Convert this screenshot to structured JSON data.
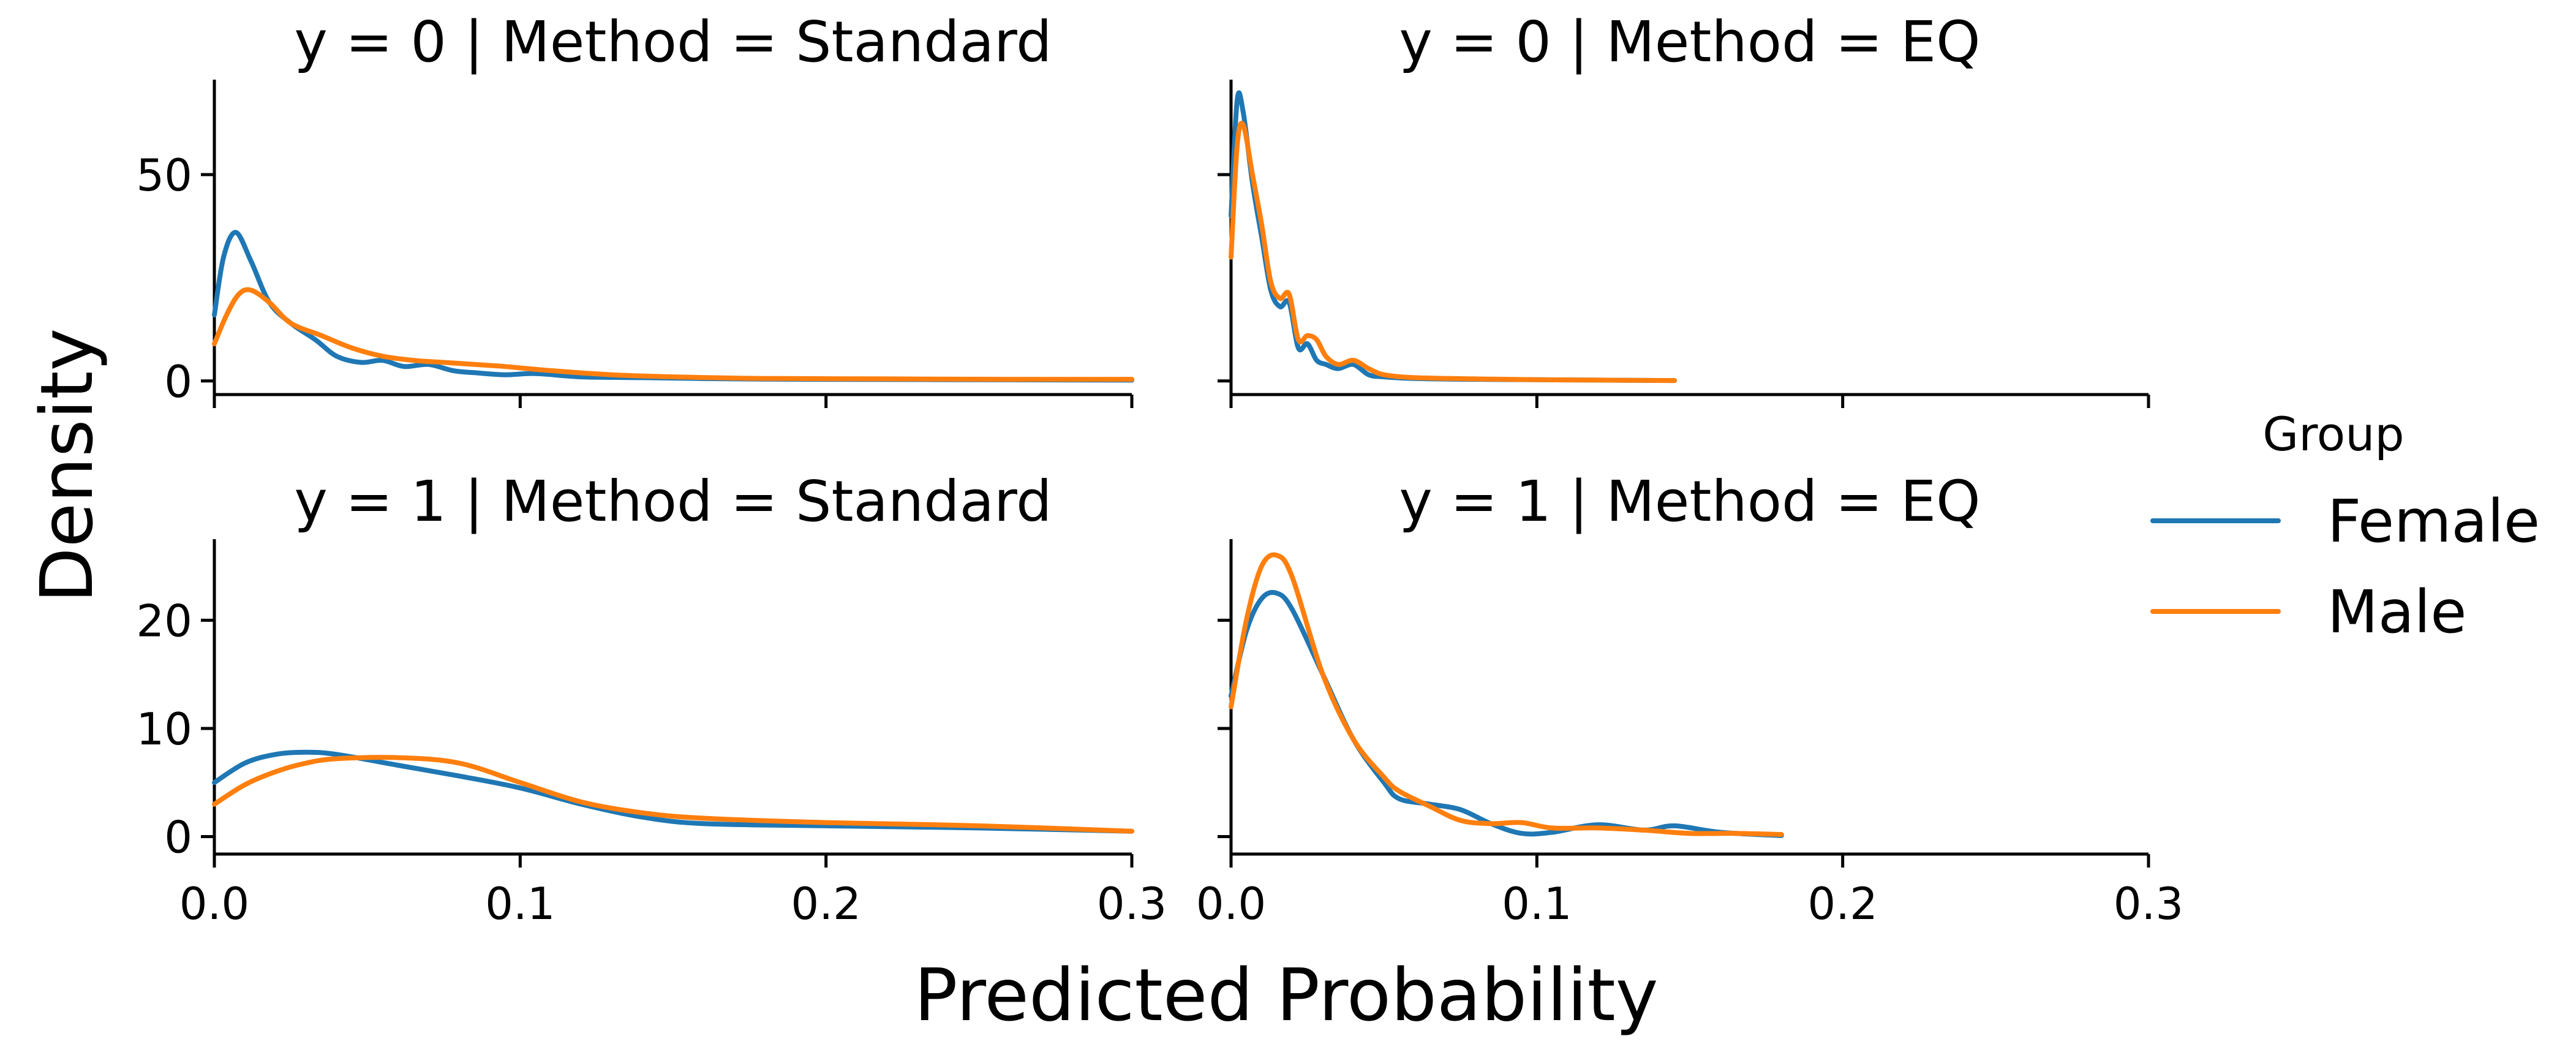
{
  "chart_data": {
    "type": "line",
    "xlabel": "Predicted Probability",
    "ylabel": "Density",
    "legend": {
      "title": "Group",
      "placement": "right",
      "entries": [
        {
          "name": "Female",
          "color": "#1f77b4"
        },
        {
          "name": "Male",
          "color": "#ff7f0e"
        }
      ]
    },
    "x_ticks": [
      0.0,
      0.1,
      0.2,
      0.3
    ],
    "x_tick_labels": [
      "0.0",
      "0.1",
      "0.2",
      "0.3"
    ],
    "xlim": [
      0.0,
      0.3
    ],
    "rows": [
      {
        "ylim": [
          -3,
          73
        ],
        "y_ticks": [
          0,
          50
        ],
        "y_tick_labels": [
          "0",
          "50"
        ]
      },
      {
        "ylim": [
          -1.5,
          27.5
        ],
        "y_ticks": [
          0,
          10,
          20
        ],
        "y_tick_labels": [
          "0",
          "10",
          "20"
        ]
      }
    ],
    "panels": [
      {
        "title": "y = 0 | Method = Standard",
        "row": 0,
        "col": 0,
        "series": [
          {
            "name": "Female",
            "x": [
              0.0,
              0.003,
              0.007,
              0.012,
              0.018,
              0.025,
              0.033,
              0.04,
              0.048,
              0.055,
              0.062,
              0.07,
              0.078,
              0.085,
              0.095,
              0.105,
              0.12,
              0.14,
              0.17,
              0.2,
              0.25,
              0.3
            ],
            "y": [
              16,
              30,
              36,
              29,
              19,
              14,
              10,
              6,
              4.5,
              5,
              3.5,
              4,
              2.5,
              2,
              1.5,
              1.8,
              1,
              0.8,
              0.5,
              0.4,
              0.3,
              0.2
            ]
          },
          {
            "name": "Male",
            "x": [
              0.0,
              0.004,
              0.008,
              0.012,
              0.018,
              0.025,
              0.035,
              0.045,
              0.055,
              0.065,
              0.075,
              0.085,
              0.095,
              0.11,
              0.13,
              0.15,
              0.18,
              0.22,
              0.26,
              0.3
            ],
            "y": [
              9,
              16,
              21,
              22,
              19,
              14,
              11,
              8,
              6,
              5,
              4.5,
              4,
              3.5,
              2.5,
              1.5,
              1.0,
              0.6,
              0.5,
              0.4,
              0.4
            ]
          }
        ]
      },
      {
        "title": "y = 0 | Method = EQ",
        "row": 0,
        "col": 1,
        "series": [
          {
            "name": "Female",
            "x": [
              0.0,
              0.002,
              0.004,
              0.007,
              0.01,
              0.013,
              0.016,
              0.019,
              0.022,
              0.025,
              0.028,
              0.031,
              0.035,
              0.04,
              0.045,
              0.05,
              0.06,
              0.08,
              0.1,
              0.12,
              0.145
            ],
            "y": [
              40,
              68,
              65,
              48,
              35,
              22,
              18,
              19,
              8,
              9,
              5,
              4,
              3,
              4,
              1.5,
              1,
              0.6,
              0.4,
              0.3,
              0.2,
              0.1
            ]
          },
          {
            "name": "Male",
            "x": [
              0.0,
              0.002,
              0.004,
              0.007,
              0.01,
              0.013,
              0.016,
              0.019,
              0.022,
              0.025,
              0.028,
              0.031,
              0.035,
              0.04,
              0.045,
              0.05,
              0.06,
              0.08,
              0.1,
              0.12,
              0.145
            ],
            "y": [
              30,
              57,
              62,
              50,
              38,
              24,
              20,
              21,
              10,
              11,
              10,
              6,
              4,
              5,
              3,
              1.5,
              0.8,
              0.5,
              0.3,
              0.2,
              0.1
            ]
          }
        ]
      },
      {
        "title": "y = 1 | Method = Standard",
        "row": 1,
        "col": 0,
        "series": [
          {
            "name": "Female",
            "x": [
              0.0,
              0.01,
              0.02,
              0.03,
              0.04,
              0.06,
              0.08,
              0.1,
              0.12,
              0.14,
              0.16,
              0.2,
              0.25,
              0.3
            ],
            "y": [
              5,
              6.8,
              7.6,
              7.8,
              7.6,
              6.6,
              5.6,
              4.5,
              3.0,
              1.8,
              1.2,
              1.0,
              0.8,
              0.5
            ]
          },
          {
            "name": "Male",
            "x": [
              0.0,
              0.01,
              0.02,
              0.03,
              0.04,
              0.06,
              0.08,
              0.1,
              0.12,
              0.14,
              0.16,
              0.2,
              0.25,
              0.3
            ],
            "y": [
              3,
              4.8,
              6.0,
              6.8,
              7.2,
              7.3,
              6.8,
              5.0,
              3.2,
              2.2,
              1.7,
              1.3,
              1.0,
              0.5
            ]
          }
        ]
      },
      {
        "title": "y = 1 | Method = EQ",
        "row": 1,
        "col": 1,
        "series": [
          {
            "name": "Female",
            "x": [
              0.0,
              0.005,
              0.01,
              0.015,
              0.02,
              0.03,
              0.04,
              0.05,
              0.055,
              0.065,
              0.075,
              0.085,
              0.095,
              0.105,
              0.12,
              0.135,
              0.145,
              0.16,
              0.18
            ],
            "y": [
              13,
              19,
              22,
              22.5,
              21,
              15,
              9,
              5,
              3.5,
              3.0,
              2.5,
              1.2,
              0.3,
              0.4,
              1.1,
              0.6,
              1.0,
              0.4,
              0.1
            ]
          },
          {
            "name": "Male",
            "x": [
              0.0,
              0.005,
              0.01,
              0.015,
              0.02,
              0.03,
              0.04,
              0.05,
              0.055,
              0.065,
              0.075,
              0.085,
              0.095,
              0.105,
              0.12,
              0.135,
              0.15,
              0.165,
              0.18
            ],
            "y": [
              12,
              20,
              25,
              26,
              24,
              15,
              9,
              5.5,
              4.2,
              2.8,
              1.5,
              1.2,
              1.3,
              0.8,
              0.8,
              0.6,
              0.3,
              0.3,
              0.2
            ]
          }
        ]
      }
    ]
  }
}
